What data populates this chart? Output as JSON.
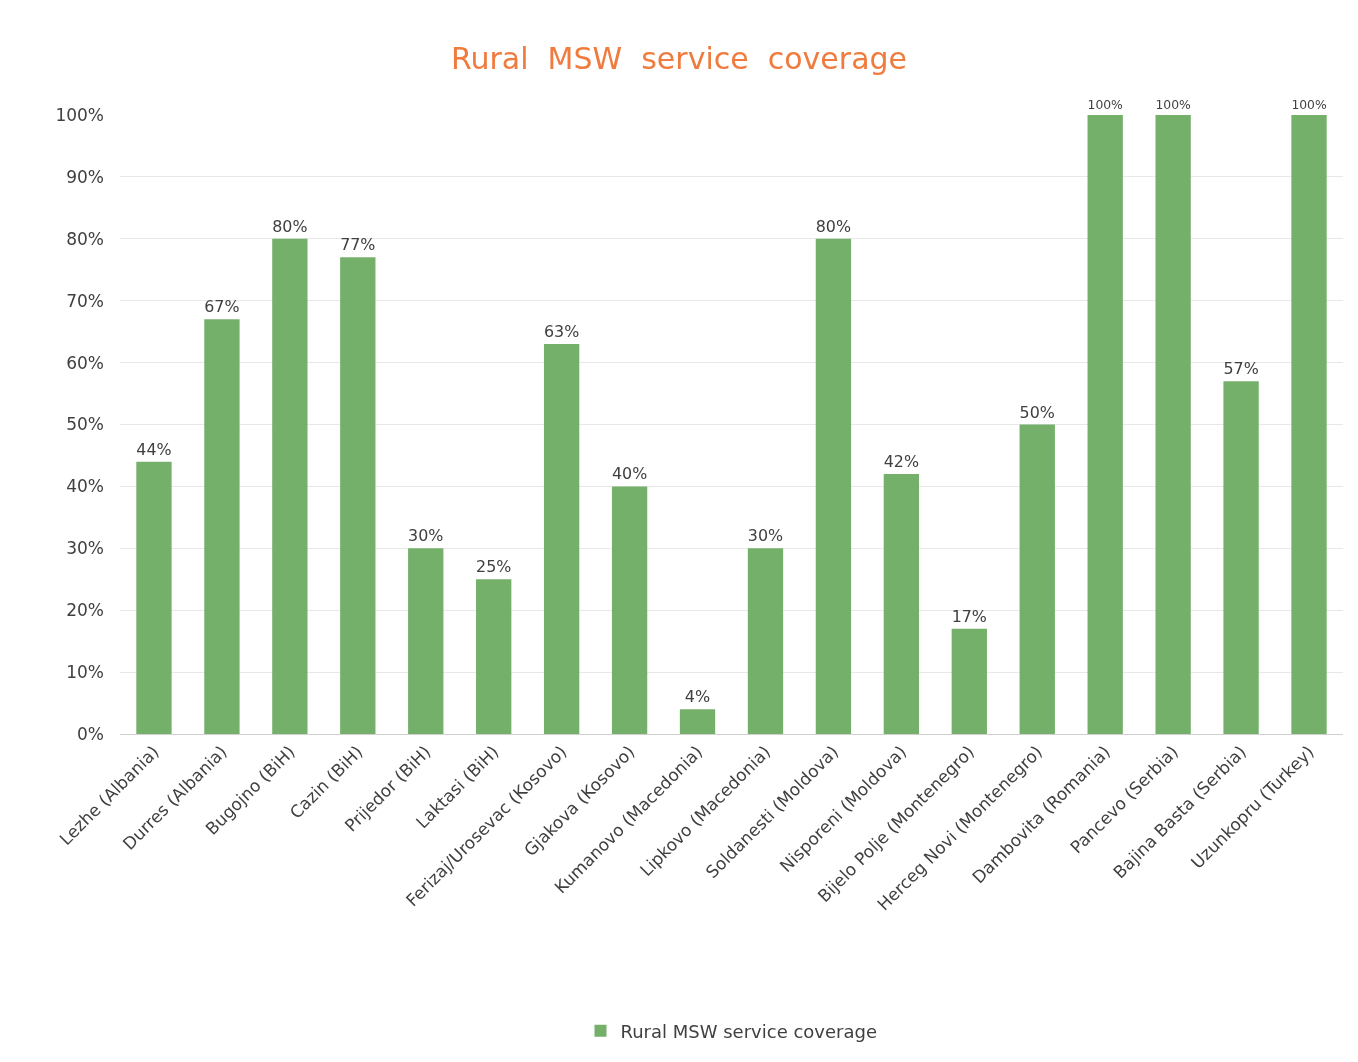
{
  "chart_data": {
    "type": "bar",
    "title": "Rural  MSW  service  coverage",
    "categories": [
      "Lezhe (Albania)",
      "Durres (Albania)",
      "Bugojno (BiH)",
      "Cazin (BiH)",
      "Prijedor (BiH)",
      "Laktasi (BiH)",
      "Ferizaj/Urosevac (Kosovo)",
      "Gjakova (Kosovo)",
      "Kumanovo (Macedonia)",
      "Lipkovo (Macedonia)",
      "Soldanesti (Moldova)",
      "Nisporeni (Moldova)",
      "Bijelo Polje (Montenegro)",
      "Herceg Novi (Montenegro)",
      "Dambovita (Romania)",
      "Pancevo (Serbia)",
      "Bajina Basta (Serbia)",
      "Uzunkopru (Turkey)"
    ],
    "series": [
      {
        "name": "Rural MSW service coverage",
        "color": "#75b06b",
        "values": [
          44,
          67,
          80,
          77,
          30,
          25,
          63,
          40,
          4,
          30,
          80,
          42,
          17,
          50,
          100,
          100,
          57,
          100
        ],
        "value_labels": [
          "44%",
          "67%",
          "80%",
          "77%",
          "30%",
          "25%",
          "63%",
          "40%",
          "4%",
          "30%",
          "80%",
          "42%",
          "17%",
          "50%",
          "100%",
          "100%",
          "57%",
          "100%"
        ]
      }
    ],
    "ylim": [
      0,
      100
    ],
    "yticks": [
      {
        "value": 0,
        "label": "0%"
      },
      {
        "value": 10,
        "label": "10%"
      },
      {
        "value": 20,
        "label": "20%"
      },
      {
        "value": 30,
        "label": "30%"
      },
      {
        "value": 40,
        "label": "40%"
      },
      {
        "value": 50,
        "label": "50%"
      },
      {
        "value": 60,
        "label": "60%"
      },
      {
        "value": 70,
        "label": "70%"
      },
      {
        "value": 80,
        "label": "80%"
      },
      {
        "value": 90,
        "label": "90%"
      },
      {
        "value": 100,
        "label": "100%"
      }
    ],
    "grid": "y",
    "legend": "bottom"
  }
}
